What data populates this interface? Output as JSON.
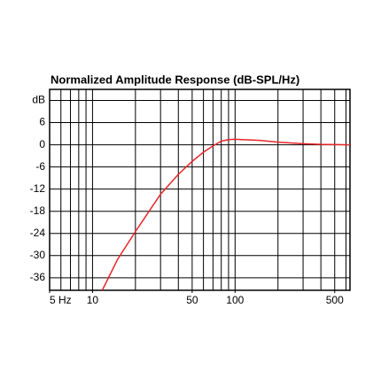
{
  "chart_data": {
    "type": "line",
    "title": "Normalized Amplitude Response (dB-SPL/Hz)",
    "x_scale": "log",
    "xlim": [
      5,
      640
    ],
    "ylim": [
      -39.4,
      15
    ],
    "xticks": [
      {
        "value": 5,
        "label": "5 Hz"
      },
      10,
      50,
      100,
      500
    ],
    "xgrid": [
      5,
      6,
      7,
      8,
      9,
      10,
      20,
      30,
      40,
      50,
      60,
      70,
      80,
      90,
      100,
      200,
      300,
      400,
      500,
      600
    ],
    "yticks": [
      {
        "value": 12,
        "label": "dB"
      },
      6,
      0,
      -6,
      -12,
      -18,
      -24,
      -30,
      -36
    ],
    "grid": true,
    "series": [
      {
        "color": "#e8262a",
        "x": [
          11.7,
          15,
          20,
          30,
          40,
          50,
          60,
          70,
          80,
          90,
          100,
          150,
          200,
          300,
          400,
          640
        ],
        "values": [
          -39.4,
          -31,
          -23.5,
          -13.4,
          -8,
          -4.5,
          -2,
          -0.3,
          1,
          1.4,
          1.5,
          1.2,
          0.7,
          0.3,
          0.1,
          0
        ]
      }
    ]
  }
}
